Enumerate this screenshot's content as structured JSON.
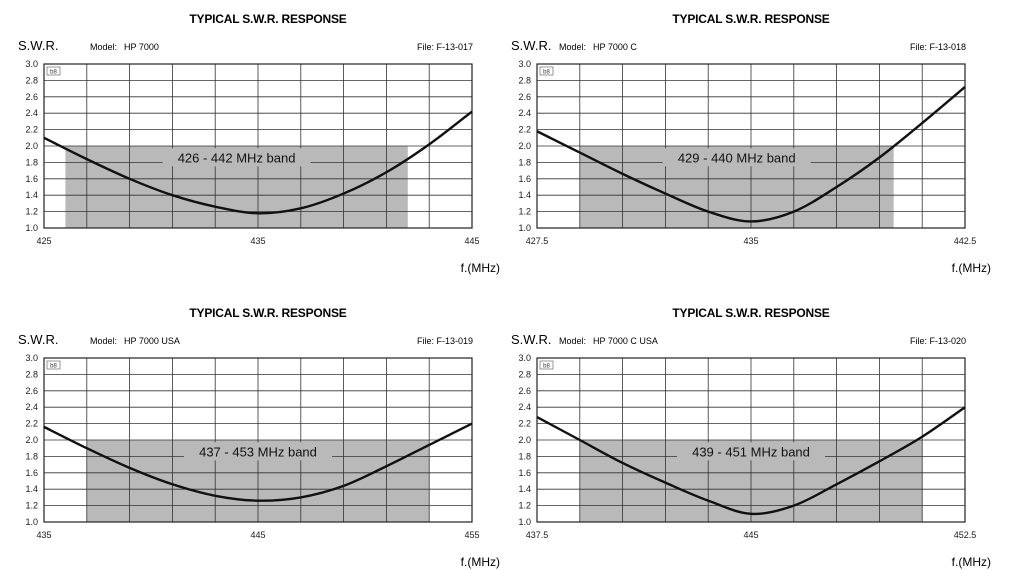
{
  "chart_data": [
    {
      "type": "line",
      "title": "TYPICAL S.W.R. RESPONSE",
      "ylabel": "S.W.R.",
      "xlabel": "f.(MHz)",
      "model_label": "Model:",
      "model": "HP 7000",
      "file": "File: F-13-017",
      "flag": "b8",
      "band_label": "426 - 442 MHz band",
      "band": [
        426,
        442
      ],
      "band_top": 2.0,
      "xlim": [
        425,
        445
      ],
      "ylim": [
        1.0,
        3.0
      ],
      "x_ticks": [
        "425",
        "435",
        "445"
      ],
      "y_ticks": [
        "1.0",
        "1.2",
        "1.4",
        "1.6",
        "1.8",
        "2.0",
        "2.2",
        "2.4",
        "2.6",
        "2.8",
        "3.0"
      ],
      "grid": true,
      "x": [
        425,
        427,
        429,
        431,
        433,
        435,
        437,
        439,
        441,
        443,
        445
      ],
      "values": [
        2.1,
        1.84,
        1.6,
        1.4,
        1.26,
        1.18,
        1.24,
        1.42,
        1.68,
        2.02,
        2.42
      ]
    },
    {
      "type": "line",
      "title": "TYPICAL S.W.R. RESPONSE",
      "ylabel": "S.W.R.",
      "xlabel": "f.(MHz)",
      "model_label": "Model:",
      "model": "HP 7000 C",
      "file": "File: F-13-018",
      "flag": "b8",
      "band_label": "429 - 440 MHz band",
      "band": [
        429,
        440
      ],
      "band_top": 2.0,
      "xlim": [
        427.5,
        442.5
      ],
      "ylim": [
        1.0,
        3.0
      ],
      "x_ticks": [
        "427.5",
        "435",
        "442.5"
      ],
      "y_ticks": [
        "1.0",
        "1.2",
        "1.4",
        "1.6",
        "1.8",
        "2.0",
        "2.2",
        "2.4",
        "2.6",
        "2.8",
        "3.0"
      ],
      "grid": true,
      "x": [
        427.5,
        429,
        430.5,
        432,
        433.5,
        435,
        436.5,
        438,
        439.5,
        441,
        442.5
      ],
      "values": [
        2.18,
        1.92,
        1.66,
        1.42,
        1.2,
        1.08,
        1.2,
        1.5,
        1.86,
        2.28,
        2.72
      ]
    },
    {
      "type": "line",
      "title": "TYPICAL S.W.R. RESPONSE",
      "ylabel": "S.W.R.",
      "xlabel": "f.(MHz)",
      "model_label": "Model:",
      "model": "HP 7000 USA",
      "file": "File: F-13-019",
      "flag": "b8",
      "band_label": "437 - 453 MHz band",
      "band": [
        437,
        453
      ],
      "band_top": 2.0,
      "xlim": [
        435,
        455
      ],
      "ylim": [
        1.0,
        3.0
      ],
      "x_ticks": [
        "435",
        "445",
        "455"
      ],
      "y_ticks": [
        "1.0",
        "1.2",
        "1.4",
        "1.6",
        "1.8",
        "2.0",
        "2.2",
        "2.4",
        "2.6",
        "2.8",
        "3.0"
      ],
      "grid": true,
      "x": [
        435,
        437,
        439,
        441,
        443,
        445,
        447,
        449,
        451,
        453,
        455
      ],
      "values": [
        2.16,
        1.9,
        1.66,
        1.46,
        1.32,
        1.26,
        1.3,
        1.44,
        1.68,
        1.94,
        2.2
      ]
    },
    {
      "type": "line",
      "title": "TYPICAL S.W.R. RESPONSE",
      "ylabel": "S.W.R.",
      "xlabel": "f.(MHz)",
      "model_label": "Model:",
      "model": "HP 7000 C USA",
      "file": "File: F-13-020",
      "flag": "b8",
      "band_label": "439 - 451 MHz band",
      "band": [
        439,
        451
      ],
      "band_top": 2.0,
      "xlim": [
        437.5,
        452.5
      ],
      "ylim": [
        1.0,
        3.0
      ],
      "x_ticks": [
        "437.5",
        "445",
        "452.5"
      ],
      "y_ticks": [
        "1.0",
        "1.2",
        "1.4",
        "1.6",
        "1.8",
        "2.0",
        "2.2",
        "2.4",
        "2.6",
        "2.8",
        "3.0"
      ],
      "grid": true,
      "x": [
        437.5,
        439,
        440.5,
        442,
        443.5,
        445,
        446.5,
        448,
        449.5,
        451,
        452.5
      ],
      "values": [
        2.28,
        2.0,
        1.72,
        1.48,
        1.26,
        1.1,
        1.2,
        1.46,
        1.74,
        2.04,
        2.4
      ]
    }
  ]
}
